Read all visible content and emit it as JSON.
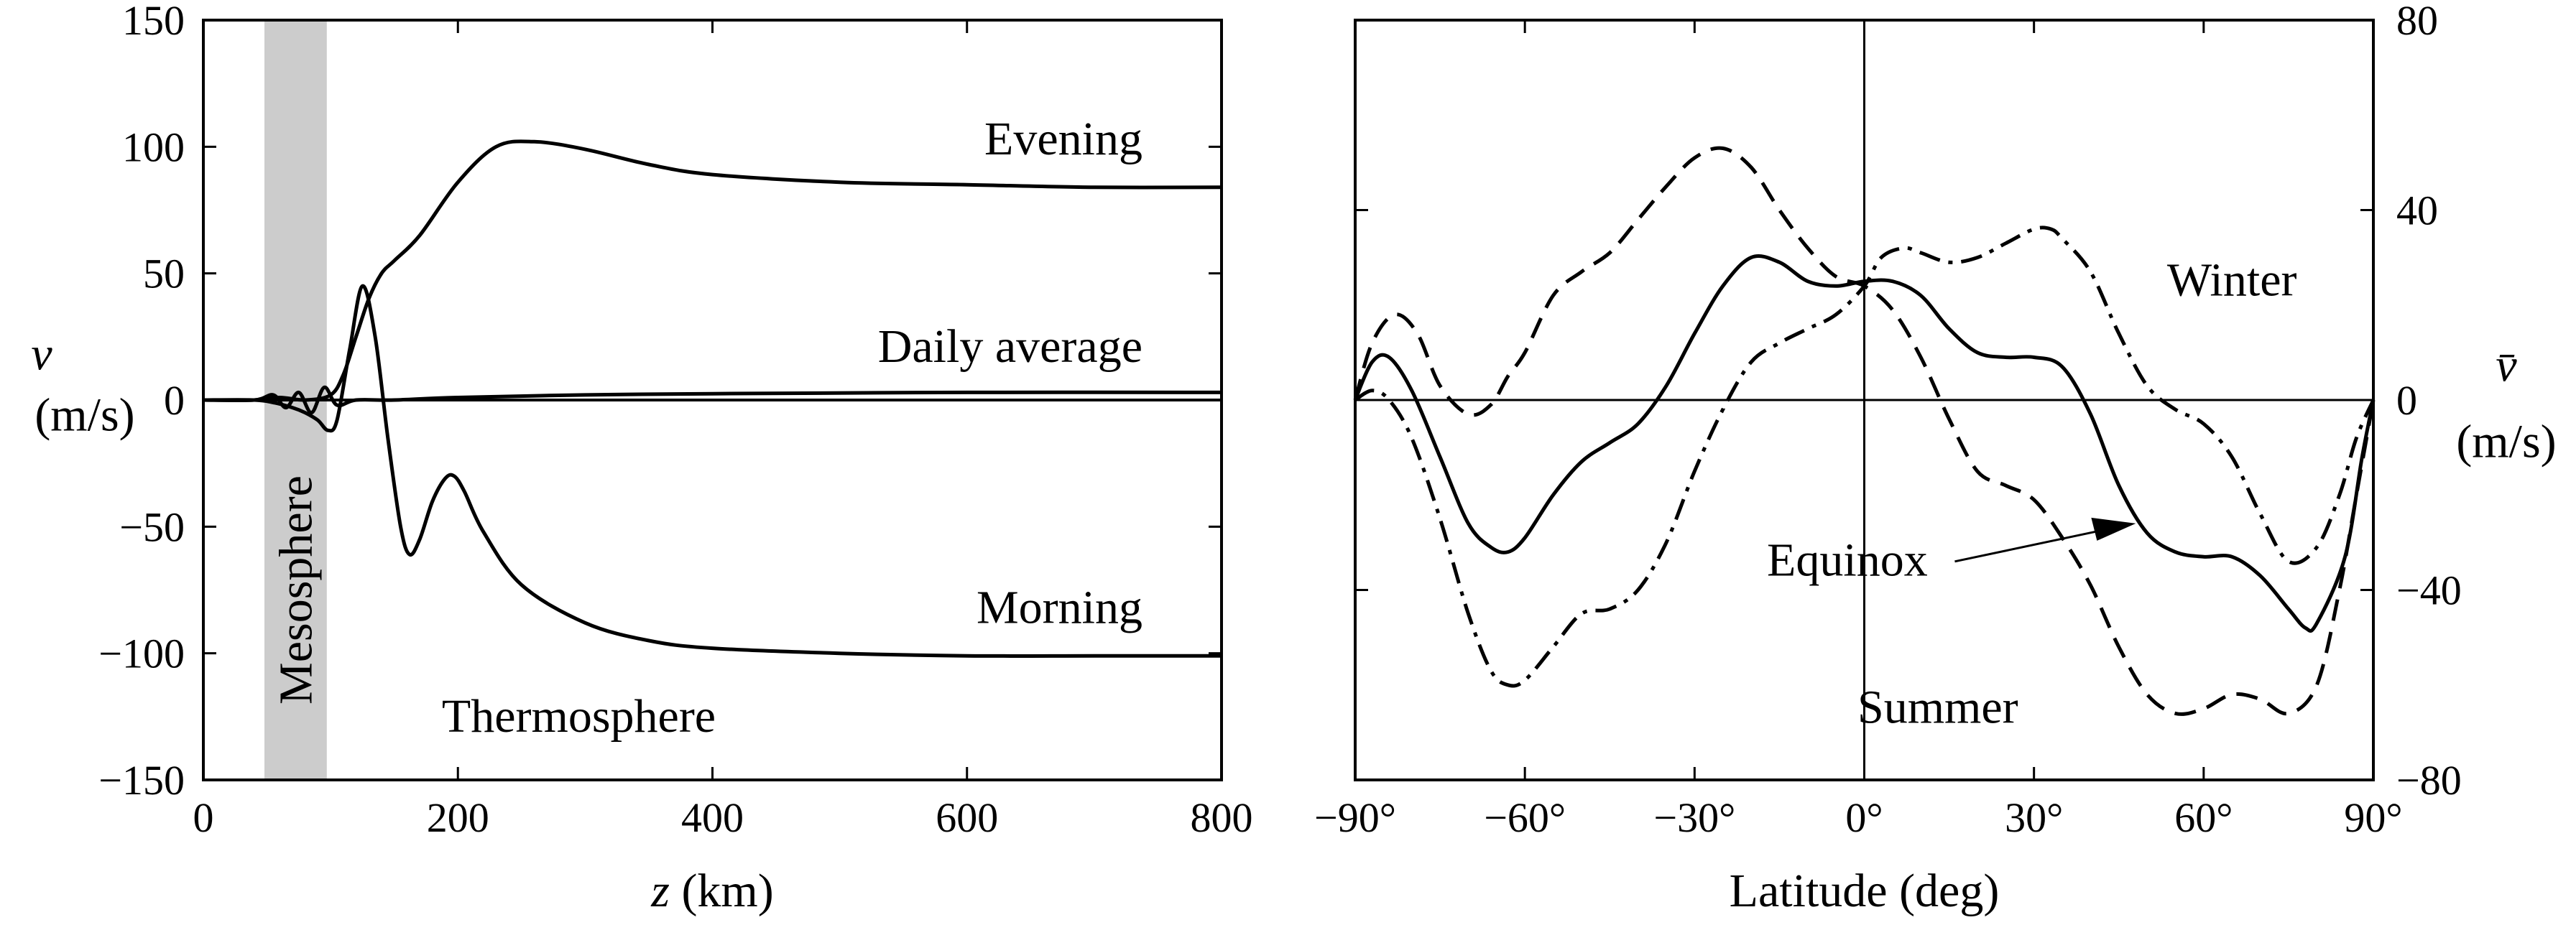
{
  "chart_data": [
    {
      "type": "line",
      "xlabel_var": "z",
      "xlabel_unit": " (km)",
      "ylabel_var": "v",
      "ylabel_unit": "(m/s)",
      "xlim": [
        0,
        800
      ],
      "ylim": [
        -150,
        150
      ],
      "xticks": [
        0,
        200,
        400,
        600,
        800
      ],
      "yticks": [
        150,
        100,
        50,
        0,
        -50,
        -100,
        -150
      ],
      "ytick_labels": [
        "150",
        "100",
        "50",
        "0",
        "−50",
        "−100",
        "−150"
      ],
      "grid": false,
      "shaded_band": {
        "x": [
          48,
          97
        ],
        "label": "Mesosphere",
        "color": "#cccccc"
      },
      "region_label": "Thermosphere",
      "series": [
        {
          "name": "Evening",
          "style": "solid",
          "x": [
            0,
            40,
            60,
            80,
            100,
            110,
            120,
            130,
            140,
            150,
            170,
            200,
            230,
            260,
            300,
            350,
            400,
            500,
            600,
            700,
            800
          ],
          "y": [
            0,
            0,
            1,
            0,
            2,
            10,
            25,
            40,
            50,
            55,
            65,
            86,
            100,
            102,
            99,
            93,
            89,
            86,
            85,
            84,
            84
          ]
        },
        {
          "name": "Daily average",
          "style": "solid",
          "x": [
            0,
            40,
            55,
            65,
            75,
            85,
            95,
            105,
            120,
            150,
            200,
            300,
            400,
            600,
            800
          ],
          "y": [
            0,
            0,
            2,
            -3,
            3,
            -5,
            5,
            -2,
            0,
            0,
            1,
            2,
            2.5,
            3,
            3
          ]
        },
        {
          "name": "Morning",
          "style": "solid",
          "x": [
            0,
            40,
            55,
            70,
            80,
            90,
            98,
            105,
            115,
            125,
            135,
            145,
            155,
            162,
            170,
            180,
            190,
            197,
            205,
            220,
            250,
            300,
            350,
            400,
            500,
            600,
            700,
            800
          ],
          "y": [
            0,
            0,
            -1,
            -3,
            -5,
            -8,
            -12,
            -8,
            20,
            45,
            25,
            -15,
            -50,
            -61,
            -55,
            -40,
            -31,
            -30,
            -36,
            -52,
            -73,
            -88,
            -95,
            -98,
            -100,
            -101,
            -101,
            -101
          ]
        }
      ],
      "annotations": {
        "evening": "Evening",
        "daily": "Daily average",
        "morning": "Morning"
      }
    },
    {
      "type": "line",
      "xlabel": "Latitude (deg)",
      "ylabel_var": "v̄",
      "ylabel_unit": "(m/s)",
      "xlim": [
        -90,
        90
      ],
      "ylim": [
        -80,
        80
      ],
      "xticks": [
        -90,
        -60,
        -30,
        0,
        30,
        60,
        90
      ],
      "xtick_labels": [
        "−90°",
        "−60°",
        "−30°",
        "0°",
        "30°",
        "60°",
        "90°"
      ],
      "yticks": [
        80,
        40,
        0,
        -40,
        -80
      ],
      "ytick_labels": [
        "80",
        "40",
        "0",
        "−40",
        "−80"
      ],
      "y_axis_side": "right",
      "grid": false,
      "series": [
        {
          "name": "Equinox",
          "style": "solid",
          "x": [
            -90,
            -87,
            -84,
            -80,
            -75,
            -70,
            -66,
            -63,
            -60,
            -55,
            -50,
            -45,
            -40,
            -35,
            -30,
            -25,
            -20,
            -15,
            -10,
            -5,
            0,
            5,
            10,
            15,
            20,
            25,
            30,
            35,
            40,
            45,
            50,
            55,
            60,
            65,
            70,
            75,
            78,
            80,
            85,
            88,
            90
          ],
          "y": [
            0,
            8,
            9,
            2,
            -12,
            -26,
            -31,
            -32,
            -29,
            -20,
            -13,
            -9,
            -5,
            3,
            14,
            24,
            30,
            29,
            25,
            24,
            25,
            25,
            22,
            15,
            10,
            9,
            9,
            7,
            -3,
            -18,
            -28,
            -32,
            -33,
            -33,
            -37,
            -44,
            -48,
            -47,
            -33,
            -12,
            0
          ]
        },
        {
          "name": "Summer",
          "style": "dashed",
          "x": [
            -90,
            -87,
            -83,
            -79,
            -75,
            -70,
            -66,
            -63,
            -60,
            -55,
            -50,
            -45,
            -40,
            -35,
            -30,
            -25,
            -20,
            -15,
            -10,
            -5,
            0,
            5,
            10,
            15,
            20,
            25,
            30,
            35,
            40,
            45,
            50,
            55,
            60,
            65,
            70,
            75,
            80,
            84,
            87,
            90
          ],
          "y": [
            0,
            12,
            18,
            14,
            3,
            -3,
            -1,
            5,
            10,
            22,
            27,
            31,
            38,
            45,
            51,
            53,
            49,
            40,
            32,
            26,
            24,
            19,
            9,
            -4,
            -15,
            -18,
            -21,
            -29,
            -39,
            -52,
            -62,
            -66,
            -65,
            -62,
            -63,
            -66,
            -60,
            -40,
            -20,
            0
          ]
        },
        {
          "name": "Winter",
          "style": "dashdot",
          "x": [
            -90,
            -87,
            -84,
            -80,
            -75,
            -70,
            -66,
            -63,
            -60,
            -55,
            -50,
            -45,
            -40,
            -35,
            -30,
            -25,
            -20,
            -15,
            -10,
            -5,
            0,
            3,
            7,
            10,
            15,
            20,
            25,
            30,
            33,
            35,
            40,
            45,
            50,
            55,
            60,
            65,
            70,
            75,
            80,
            84,
            87,
            90
          ],
          "y": [
            0,
            2,
            0,
            -8,
            -25,
            -45,
            -57,
            -60,
            -59,
            -52,
            -45,
            -44,
            -40,
            -30,
            -15,
            -2,
            8,
            12,
            15,
            18,
            24,
            30,
            32,
            31,
            29,
            30,
            33,
            36,
            36,
            34,
            27,
            14,
            3,
            -2,
            -5,
            -12,
            -24,
            -34,
            -31,
            -20,
            -8,
            0
          ]
        }
      ],
      "annotations": {
        "winter": "Winter",
        "equinox": "Equinox",
        "summer": "Summer"
      }
    }
  ]
}
